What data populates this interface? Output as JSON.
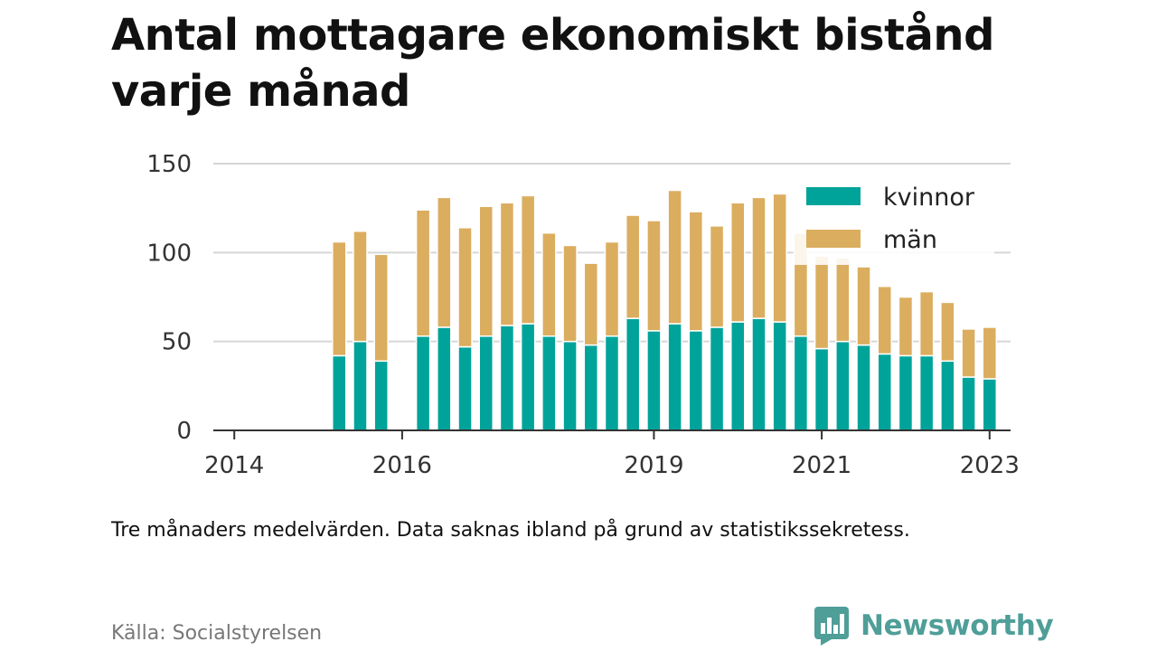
{
  "title": "Antal mottagare ekonomiskt bistånd varje månad",
  "footnote": "Tre månaders medelvärden. Data saknas ibland på grund av statistikssekretess.",
  "source": "Källa: Socialstyrelsen",
  "brand": {
    "name": "Newsworthy",
    "icon": "newsworthy-logo-icon",
    "color": "#4f9e98"
  },
  "chart_data": {
    "type": "bar",
    "stacked": true,
    "title": "Antal mottagare ekonomiskt bistånd varje månad",
    "xlabel": "",
    "ylabel": "",
    "ylim": [
      0,
      150
    ],
    "yticks": [
      0,
      50,
      100,
      150
    ],
    "xticks": [
      "2014",
      "2016",
      "2019",
      "2021",
      "2023"
    ],
    "xlim": [
      2013.75,
      2023.25
    ],
    "grid": true,
    "legend": "top-right",
    "x": [
      2015.25,
      2015.5,
      2015.75,
      2016.25,
      2016.5,
      2016.75,
      2017.0,
      2017.25,
      2017.5,
      2017.75,
      2018.0,
      2018.25,
      2018.5,
      2018.75,
      2019.0,
      2019.25,
      2019.5,
      2019.75,
      2020.0,
      2020.25,
      2020.5,
      2020.75,
      2021.0,
      2021.25,
      2021.5,
      2021.75,
      2022.0,
      2022.25,
      2022.5,
      2022.75,
      2023.0,
      2023.25
    ],
    "series": [
      {
        "name": "kvinnor",
        "color": "#00a39a",
        "values": [
          42,
          50,
          39,
          53,
          58,
          47,
          53,
          59,
          60,
          53,
          50,
          48,
          53,
          63,
          56,
          60,
          56,
          58,
          61,
          63,
          61,
          53,
          46,
          50,
          48,
          43,
          42,
          42,
          39,
          30,
          29,
          null
        ]
      },
      {
        "name": "män",
        "color": "#dbad5f",
        "values": [
          64,
          62,
          60,
          71,
          73,
          67,
          73,
          69,
          72,
          58,
          54,
          46,
          53,
          58,
          62,
          75,
          67,
          57,
          67,
          68,
          72,
          58,
          52,
          47,
          44,
          38,
          33,
          36,
          33,
          27,
          29,
          null
        ]
      }
    ]
  }
}
